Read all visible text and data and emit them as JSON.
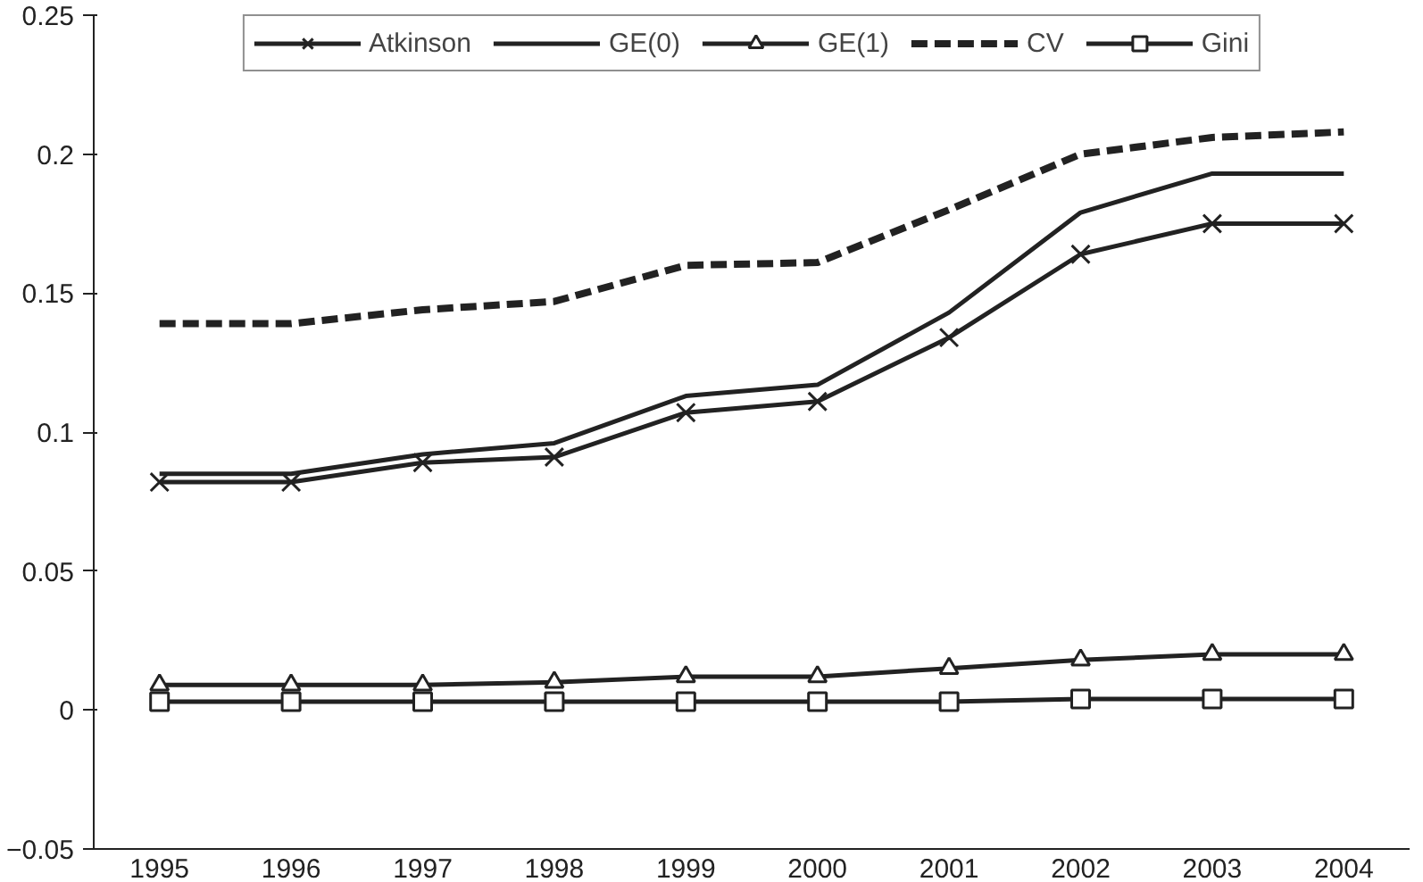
{
  "chart_data": {
    "type": "line",
    "categories": [
      "1995",
      "1996",
      "1997",
      "1998",
      "1999",
      "2000",
      "2001",
      "2002",
      "2003",
      "2004"
    ],
    "series": [
      {
        "name": "Atkinson",
        "color": "#222222",
        "marker": "cross",
        "line_style": "solid",
        "values": [
          0.082,
          0.082,
          0.089,
          0.091,
          0.107,
          0.111,
          0.134,
          0.164,
          0.175,
          0.175
        ]
      },
      {
        "name": "GE(0)",
        "color": "#222222",
        "marker": "none",
        "line_style": "solid",
        "values": [
          0.085,
          0.085,
          0.092,
          0.096,
          0.113,
          0.117,
          0.143,
          0.179,
          0.193,
          0.193
        ]
      },
      {
        "name": "GE(1)",
        "color": "#222222",
        "marker": "triangle",
        "line_style": "solid",
        "values": [
          0.009,
          0.009,
          0.009,
          0.01,
          0.012,
          0.012,
          0.015,
          0.018,
          0.02,
          0.02
        ]
      },
      {
        "name": "CV",
        "color": "#222222",
        "marker": "none",
        "line_style": "dashed",
        "values": [
          0.139,
          0.139,
          0.144,
          0.147,
          0.16,
          0.161,
          0.18,
          0.2,
          0.206,
          0.208
        ]
      },
      {
        "name": "Gini",
        "color": "#222222",
        "marker": "square",
        "line_style": "solid",
        "values": [
          0.003,
          0.003,
          0.003,
          0.003,
          0.003,
          0.003,
          0.003,
          0.004,
          0.004,
          0.004
        ]
      }
    ],
    "ylim": [
      -0.05,
      0.25
    ],
    "yticks": [
      {
        "value": -0.05,
        "label": "−0.05"
      },
      0,
      0.05,
      0.1,
      0.15,
      0.2,
      0.25
    ],
    "grid": false,
    "legend": "top"
  }
}
